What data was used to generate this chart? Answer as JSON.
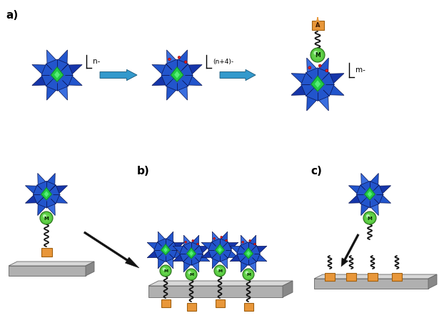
{
  "fig_width": 6.15,
  "fig_height": 4.45,
  "dpi": 100,
  "bg_color": "#ffffff",
  "label_a": "a)",
  "label_b": "b)",
  "label_c": "c)",
  "label_fontsize": 11,
  "charge_n": "n-",
  "charge_n4": "(n+4)-",
  "charge_m": "m-",
  "pom_dark": "#1535aa",
  "pom_mid": "#2255cc",
  "pom_light": "#3a6edf",
  "pom_vlight": "#5588ee",
  "pom_green": "#22cc44",
  "pom_green_dark": "#118833",
  "arrow_blue": "#3399cc",
  "arrow_black": "#111111",
  "orange": "#e8973a",
  "orange_dark": "#a06010",
  "metal_green1": "#66dd55",
  "metal_green2": "#33aa22",
  "red_dot": "#dd2222",
  "wavy_color": "#111111",
  "surf_light": "#d8d8d8",
  "surf_mid": "#b0b0b0",
  "surf_dark": "#888888",
  "surf_edge": "#666666"
}
